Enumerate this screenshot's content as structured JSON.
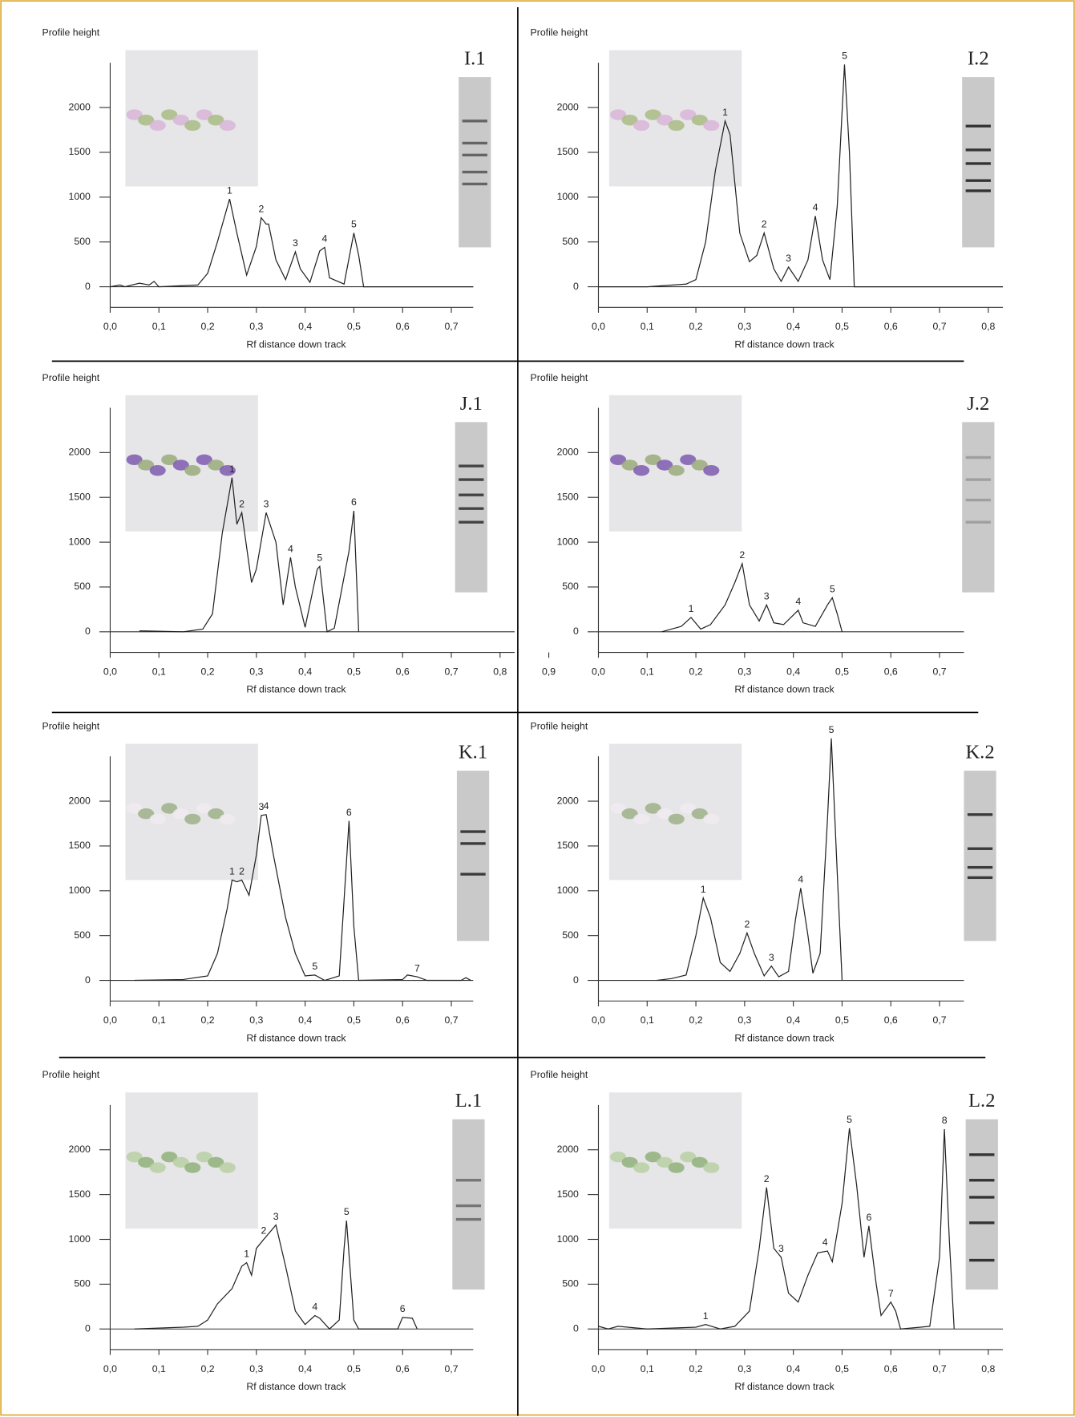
{
  "chart_data": [
    {
      "type": "line",
      "panel": "I.1",
      "y_label": "Profile height",
      "x_label": "Rf distance down track",
      "xlim": [
        0,
        0.745
      ],
      "ylim": [
        -230,
        2500
      ],
      "xticks": [
        {
          "value": 0,
          "label": "0,0"
        },
        {
          "value": 0.1,
          "label": "0,1"
        },
        {
          "value": 0.2,
          "label": "0,2"
        },
        {
          "value": 0.3,
          "label": "0,3"
        },
        {
          "value": 0.4,
          "label": "0,4"
        },
        {
          "value": 0.5,
          "label": "0,5"
        },
        {
          "value": 0.6,
          "label": "0,6"
        },
        {
          "value": 0.7,
          "label": "0,7"
        }
      ],
      "yticks": [
        0,
        500,
        1000,
        1500,
        2000
      ],
      "series": [
        {
          "color": "#222222",
          "x": [
            0,
            0.02,
            0.03,
            0.06,
            0.08,
            0.09,
            0.1,
            0.18,
            0.2,
            0.22,
            0.245,
            0.26,
            0.28,
            0.3,
            0.31,
            0.32,
            0.325,
            0.34,
            0.36,
            0.38,
            0.39,
            0.41,
            0.43,
            0.44,
            0.45,
            0.48,
            0.5,
            0.51,
            0.52,
            0.745
          ],
          "values": [
            0,
            20,
            0,
            40,
            20,
            60,
            0,
            20,
            150,
            500,
            980,
            600,
            130,
            450,
            770,
            700,
            700,
            300,
            80,
            390,
            200,
            50,
            400,
            440,
            100,
            30,
            600,
            350,
            0,
            0
          ]
        }
      ],
      "peaks": {
        "labels": [
          "1",
          "2",
          "3",
          "4",
          "5"
        ],
        "x": [
          0.245,
          0.31,
          0.38,
          0.44,
          0.5
        ],
        "y": [
          980,
          770,
          390,
          440,
          600
        ]
      }
    },
    {
      "type": "line",
      "panel": "I.2",
      "y_label": "Profile height",
      "x_label": "Rf distance down track",
      "xlim": [
        0,
        0.83
      ],
      "ylim": [
        -230,
        2500
      ],
      "xticks": [
        {
          "value": 0,
          "label": "0,0"
        },
        {
          "value": 0.1,
          "label": "0,1"
        },
        {
          "value": 0.2,
          "label": "0,2"
        },
        {
          "value": 0.3,
          "label": "0,3"
        },
        {
          "value": 0.4,
          "label": "0,4"
        },
        {
          "value": 0.5,
          "label": "0,5"
        },
        {
          "value": 0.6,
          "label": "0,6"
        },
        {
          "value": 0.7,
          "label": "0,7"
        },
        {
          "value": 0.8,
          "label": "0,8"
        }
      ],
      "yticks": [
        0,
        500,
        1000,
        1500,
        2000
      ],
      "series": [
        {
          "color": "#222222",
          "x": [
            0,
            0.1,
            0.18,
            0.2,
            0.22,
            0.24,
            0.26,
            0.27,
            0.29,
            0.31,
            0.325,
            0.34,
            0.36,
            0.375,
            0.39,
            0.41,
            0.43,
            0.445,
            0.46,
            0.475,
            0.49,
            0.505,
            0.515,
            0.525,
            0.83
          ],
          "values": [
            0,
            0,
            30,
            80,
            500,
            1300,
            1850,
            1700,
            600,
            280,
            350,
            600,
            200,
            60,
            220,
            60,
            300,
            790,
            300,
            80,
            900,
            2480,
            1500,
            0,
            0
          ]
        }
      ],
      "peaks": {
        "labels": [
          "1",
          "2",
          "3",
          "4",
          "5"
        ],
        "x": [
          0.26,
          0.34,
          0.39,
          0.445,
          0.505
        ],
        "y": [
          1850,
          600,
          220,
          790,
          2480
        ]
      }
    },
    {
      "type": "line",
      "panel": "J.1",
      "y_label": "Profile height",
      "x_label": "Rf distance down track",
      "xlim": [
        0,
        0.83
      ],
      "ylim": [
        -230,
        2500
      ],
      "xticks": [
        {
          "value": 0,
          "label": "0,0"
        },
        {
          "value": 0.1,
          "label": "0,1"
        },
        {
          "value": 0.2,
          "label": "0,2"
        },
        {
          "value": 0.3,
          "label": "0,3"
        },
        {
          "value": 0.4,
          "label": "0,4"
        },
        {
          "value": 0.5,
          "label": "0,5"
        },
        {
          "value": 0.6,
          "label": "0,6"
        },
        {
          "value": 0.7,
          "label": "0,7"
        },
        {
          "value": 0.8,
          "label": "0,8"
        },
        {
          "value": 0.9,
          "label": "0,9"
        }
      ],
      "yticks": [
        0,
        500,
        1000,
        1500,
        2000
      ],
      "series": [
        {
          "color": "#222222",
          "x": [
            0.06,
            0.07,
            0.15,
            0.19,
            0.21,
            0.23,
            0.25,
            0.26,
            0.27,
            0.29,
            0.3,
            0.32,
            0.34,
            0.355,
            0.37,
            0.38,
            0.4,
            0.425,
            0.43,
            0.445,
            0.46,
            0.49,
            0.5,
            0.51
          ],
          "values": [
            10,
            10,
            0,
            30,
            200,
            1100,
            1720,
            1200,
            1330,
            550,
            700,
            1330,
            1000,
            300,
            830,
            500,
            50,
            700,
            730,
            0,
            40,
            900,
            1350,
            0
          ]
        }
      ],
      "peaks": {
        "labels": [
          "1",
          "2",
          "3",
          "4",
          "5",
          "6"
        ],
        "x": [
          0.25,
          0.27,
          0.32,
          0.37,
          0.43,
          0.5
        ],
        "y": [
          1720,
          1330,
          1330,
          830,
          730,
          1350
        ]
      }
    },
    {
      "type": "line",
      "panel": "J.2",
      "y_label": "Profile height",
      "x_label": "Rf distance down track",
      "xlim": [
        0,
        0.75
      ],
      "ylim": [
        -230,
        2500
      ],
      "xticks": [
        {
          "value": 0,
          "label": "0,0"
        },
        {
          "value": 0.1,
          "label": "0,1"
        },
        {
          "value": 0.2,
          "label": "0,2"
        },
        {
          "value": 0.3,
          "label": "0,3"
        },
        {
          "value": 0.4,
          "label": "0,4"
        },
        {
          "value": 0.5,
          "label": "0,5"
        },
        {
          "value": 0.6,
          "label": "0,6"
        },
        {
          "value": 0.7,
          "label": "0,7"
        }
      ],
      "yticks": [
        0,
        500,
        1000,
        1500,
        2000
      ],
      "series": [
        {
          "color": "#222222",
          "x": [
            0.13,
            0.17,
            0.19,
            0.21,
            0.23,
            0.26,
            0.28,
            0.295,
            0.31,
            0.33,
            0.345,
            0.36,
            0.38,
            0.41,
            0.42,
            0.445,
            0.47,
            0.48,
            0.49,
            0.5
          ],
          "values": [
            0,
            60,
            160,
            30,
            80,
            300,
            550,
            760,
            300,
            120,
            300,
            100,
            80,
            240,
            100,
            60,
            300,
            380,
            200,
            0
          ]
        }
      ],
      "peaks": {
        "labels": [
          "1",
          "2",
          "3",
          "4",
          "5"
        ],
        "x": [
          0.19,
          0.295,
          0.345,
          0.41,
          0.48
        ],
        "y": [
          160,
          760,
          300,
          240,
          380
        ]
      }
    },
    {
      "type": "line",
      "panel": "K.1",
      "y_label": "Profile height",
      "x_label": "Rf distance down track",
      "xlim": [
        0,
        0.745
      ],
      "ylim": [
        -230,
        2500
      ],
      "xticks": [
        {
          "value": 0,
          "label": "0,0"
        },
        {
          "value": 0.1,
          "label": "0,1"
        },
        {
          "value": 0.2,
          "label": "0,2"
        },
        {
          "value": 0.3,
          "label": "0,3"
        },
        {
          "value": 0.4,
          "label": "0,4"
        },
        {
          "value": 0.5,
          "label": "0,5"
        },
        {
          "value": 0.6,
          "label": "0,6"
        },
        {
          "value": 0.7,
          "label": "0,7"
        }
      ],
      "yticks": [
        0,
        500,
        1000,
        1500,
        2000
      ],
      "series": [
        {
          "color": "#222222",
          "x": [
            0.05,
            0.15,
            0.2,
            0.22,
            0.24,
            0.25,
            0.26,
            0.27,
            0.285,
            0.3,
            0.31,
            0.32,
            0.335,
            0.36,
            0.38,
            0.4,
            0.42,
            0.44,
            0.47,
            0.48,
            0.49,
            0.5,
            0.51,
            0.6,
            0.61,
            0.63,
            0.65,
            0.72,
            0.73,
            0.74
          ],
          "values": [
            0,
            10,
            50,
            300,
            800,
            1120,
            1100,
            1120,
            950,
            1400,
            1840,
            1850,
            1400,
            700,
            300,
            50,
            60,
            0,
            50,
            900,
            1780,
            600,
            0,
            10,
            60,
            40,
            0,
            0,
            30,
            0
          ]
        }
      ],
      "peaks": {
        "labels": [
          "1",
          "2",
          "3",
          "4",
          "5",
          "6",
          "7"
        ],
        "x": [
          0.25,
          0.27,
          0.31,
          0.32,
          0.42,
          0.49,
          0.63
        ],
        "y": [
          1120,
          1120,
          1840,
          1850,
          60,
          1780,
          40
        ]
      }
    },
    {
      "type": "line",
      "panel": "K.2",
      "y_label": "Profile height",
      "x_label": "Rf distance down track",
      "xlim": [
        0,
        0.75
      ],
      "ylim": [
        -230,
        2500
      ],
      "xticks": [
        {
          "value": 0,
          "label": "0,0"
        },
        {
          "value": 0.1,
          "label": "0,1"
        },
        {
          "value": 0.2,
          "label": "0,2"
        },
        {
          "value": 0.3,
          "label": "0,3"
        },
        {
          "value": 0.4,
          "label": "0,4"
        },
        {
          "value": 0.5,
          "label": "0,5"
        },
        {
          "value": 0.6,
          "label": "0,6"
        },
        {
          "value": 0.7,
          "label": "0,7"
        }
      ],
      "yticks": [
        0,
        500,
        1000,
        1500,
        2000
      ],
      "series": [
        {
          "color": "#222222",
          "x": [
            0.12,
            0.15,
            0.18,
            0.2,
            0.215,
            0.23,
            0.25,
            0.27,
            0.29,
            0.305,
            0.32,
            0.34,
            0.355,
            0.37,
            0.39,
            0.405,
            0.415,
            0.43,
            0.44,
            0.455,
            0.47,
            0.478,
            0.49,
            0.5
          ],
          "values": [
            0,
            20,
            60,
            500,
            920,
            700,
            200,
            100,
            300,
            530,
            300,
            50,
            160,
            40,
            100,
            700,
            1030,
            500,
            80,
            300,
            1800,
            2700,
            1200,
            0
          ]
        }
      ],
      "peaks": {
        "labels": [
          "1",
          "2",
          "3",
          "4",
          "5"
        ],
        "x": [
          0.215,
          0.305,
          0.355,
          0.415,
          0.478
        ],
        "y": [
          920,
          530,
          160,
          1030,
          2700
        ]
      }
    },
    {
      "type": "line",
      "panel": "L.1",
      "y_label": "Profile height",
      "x_label": "Rf distance down track",
      "xlim": [
        0,
        0.745
      ],
      "ylim": [
        -230,
        2500
      ],
      "xticks": [
        {
          "value": 0,
          "label": "0,0"
        },
        {
          "value": 0.1,
          "label": "0,1"
        },
        {
          "value": 0.2,
          "label": "0,2"
        },
        {
          "value": 0.3,
          "label": "0,3"
        },
        {
          "value": 0.4,
          "label": "0,4"
        },
        {
          "value": 0.5,
          "label": "0,5"
        },
        {
          "value": 0.6,
          "label": "0,6"
        },
        {
          "value": 0.7,
          "label": "0,7"
        }
      ],
      "yticks": [
        0,
        500,
        1000,
        1500,
        2000
      ],
      "series": [
        {
          "color": "#222222",
          "x": [
            0.05,
            0.1,
            0.15,
            0.18,
            0.2,
            0.22,
            0.25,
            0.27,
            0.28,
            0.29,
            0.3,
            0.315,
            0.34,
            0.36,
            0.38,
            0.4,
            0.42,
            0.43,
            0.45,
            0.47,
            0.48,
            0.485,
            0.5,
            0.51,
            0.59,
            0.6,
            0.62,
            0.63
          ],
          "values": [
            0,
            10,
            20,
            30,
            100,
            280,
            450,
            700,
            740,
            600,
            900,
            1000,
            1160,
            700,
            200,
            50,
            150,
            120,
            0,
            100,
            900,
            1210,
            100,
            0,
            0,
            130,
            120,
            0
          ]
        }
      ],
      "peaks": {
        "labels": [
          "1",
          "2",
          "3",
          "4",
          "5",
          "6"
        ],
        "x": [
          0.28,
          0.315,
          0.34,
          0.42,
          0.485,
          0.6
        ],
        "y": [
          740,
          1000,
          1160,
          150,
          1210,
          130
        ]
      }
    },
    {
      "type": "line",
      "panel": "L.2",
      "y_label": "Profile height",
      "x_label": "Rf distance down track",
      "xlim": [
        0,
        0.83
      ],
      "ylim": [
        -230,
        2500
      ],
      "xticks": [
        {
          "value": 0,
          "label": "0,0"
        },
        {
          "value": 0.1,
          "label": "0,1"
        },
        {
          "value": 0.2,
          "label": "0,2"
        },
        {
          "value": 0.3,
          "label": "0,3"
        },
        {
          "value": 0.4,
          "label": "0,4"
        },
        {
          "value": 0.5,
          "label": "0,5"
        },
        {
          "value": 0.6,
          "label": "0,6"
        },
        {
          "value": 0.7,
          "label": "0,7"
        },
        {
          "value": 0.8,
          "label": "0,8"
        }
      ],
      "yticks": [
        0,
        500,
        1000,
        1500,
        2000
      ],
      "series": [
        {
          "color": "#222222",
          "x": [
            0,
            0.02,
            0.04,
            0.1,
            0.2,
            0.22,
            0.25,
            0.28,
            0.31,
            0.33,
            0.345,
            0.36,
            0.375,
            0.39,
            0.41,
            0.43,
            0.45,
            0.47,
            0.48,
            0.5,
            0.515,
            0.53,
            0.545,
            0.555,
            0.57,
            0.58,
            0.6,
            0.61,
            0.62,
            0.68,
            0.7,
            0.71,
            0.72,
            0.73
          ],
          "values": [
            30,
            0,
            30,
            0,
            20,
            50,
            0,
            30,
            200,
            900,
            1580,
            900,
            800,
            400,
            300,
            600,
            850,
            870,
            750,
            1400,
            2240,
            1600,
            800,
            1150,
            500,
            150,
            300,
            200,
            0,
            30,
            800,
            2230,
            1000,
            0
          ]
        }
      ],
      "peaks": {
        "labels": [
          "1",
          "2",
          "3",
          "4",
          "5",
          "6",
          "7",
          "8"
        ],
        "x": [
          0.22,
          0.345,
          0.375,
          0.465,
          0.515,
          0.555,
          0.6,
          0.71
        ],
        "y": [
          50,
          1580,
          800,
          870,
          2240,
          1150,
          300,
          2230
        ]
      }
    }
  ]
}
